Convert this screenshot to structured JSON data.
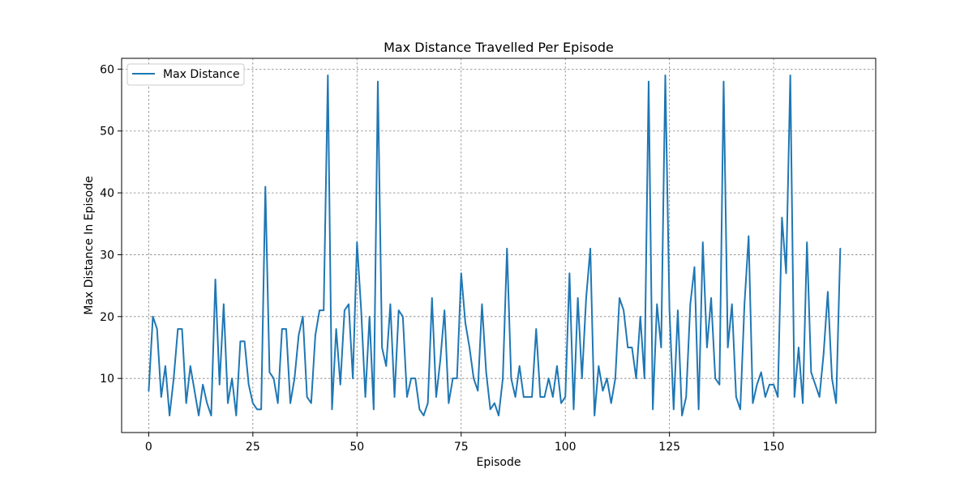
{
  "chart_data": {
    "type": "line",
    "title": "Max Distance Travelled Per Episode",
    "xlabel": "Episode",
    "ylabel": "Max Distance In Episode",
    "xlim": [
      -6.5,
      174.5
    ],
    "ylim": [
      1.25,
      61.75
    ],
    "x_ticks": [
      0,
      25,
      50,
      75,
      100,
      125,
      150
    ],
    "y_ticks": [
      10,
      20,
      30,
      40,
      50,
      60
    ],
    "grid": true,
    "legend_position": "upper-left",
    "series": [
      {
        "name": "Max Distance",
        "color": "#1f77b4",
        "x_start": 0,
        "values": [
          8,
          20,
          18,
          7,
          12,
          4,
          10,
          18,
          18,
          6,
          12,
          8,
          4,
          9,
          6,
          4,
          26,
          9,
          22,
          6,
          10,
          4,
          16,
          16,
          9,
          6,
          5,
          5,
          41,
          11,
          10,
          6,
          18,
          18,
          6,
          10,
          17,
          20,
          7,
          6,
          17,
          21,
          21,
          59,
          5,
          18,
          9,
          21,
          22,
          10,
          32,
          21,
          7,
          20,
          5,
          58,
          15,
          12,
          22,
          7,
          21,
          20,
          7,
          10,
          10,
          5,
          4,
          6,
          23,
          7,
          13,
          21,
          6,
          10,
          10,
          27,
          19,
          15,
          10,
          8,
          22,
          11,
          5,
          6,
          4,
          10,
          31,
          10,
          7,
          12,
          7,
          7,
          7,
          18,
          7,
          7,
          10,
          7,
          12,
          6,
          7,
          27,
          5,
          23,
          10,
          23,
          31,
          4,
          12,
          8,
          10,
          6,
          10,
          23,
          21,
          15,
          15,
          10,
          20,
          10,
          58,
          5,
          22,
          15,
          59,
          21,
          5,
          21,
          4,
          7,
          22,
          28,
          5,
          32,
          15,
          23,
          10,
          9,
          58,
          15,
          22,
          7,
          5,
          22,
          33,
          6,
          9,
          11,
          7,
          9,
          9,
          7,
          36,
          27,
          59,
          7,
          15,
          6,
          32,
          11,
          9,
          7,
          14,
          24,
          10,
          6,
          31
        ]
      }
    ]
  }
}
